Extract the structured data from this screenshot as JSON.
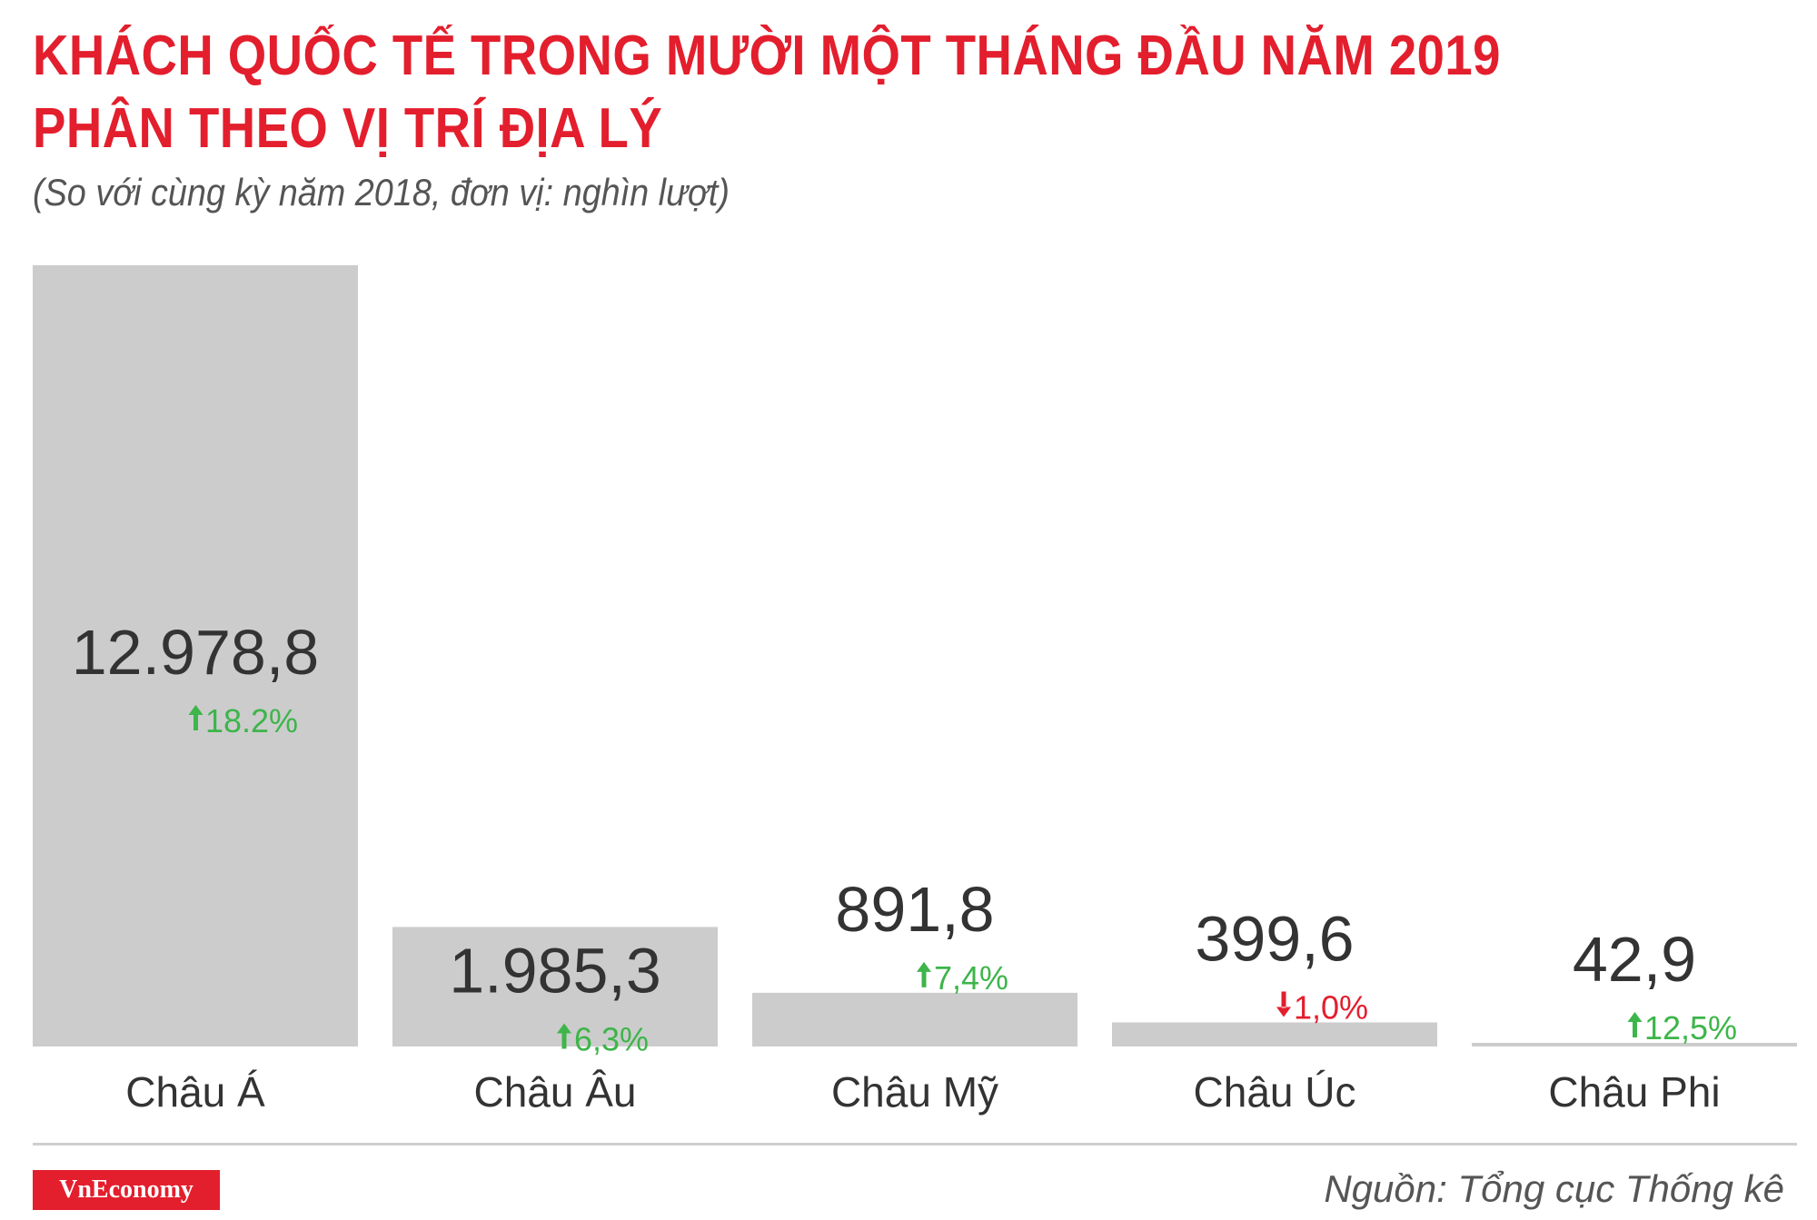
{
  "title_line1": "KHÁCH QUỐC TẾ TRONG MƯỜI MỘT THÁNG ĐẦU NĂM 2019",
  "title_line2": "PHÂN THEO VỊ TRÍ ĐỊA LÝ",
  "subtitle": "(So với cùng kỳ năm 2018, đơn vị: nghìn lượt)",
  "source": "Nguồn: Tổng cục Thống kê",
  "logo": "VnEconomy",
  "colors": {
    "title": "#e31e2d",
    "bar": "#cccccc",
    "up": "#3db54a",
    "down": "#e31e2d",
    "text": "#333333"
  },
  "chart_data": {
    "type": "bar",
    "categories": [
      "Châu Á",
      "Châu Âu",
      "Châu Mỹ",
      "Châu Úc",
      "Châu Phi"
    ],
    "values": [
      12978.8,
      1985.3,
      891.8,
      399.6,
      42.9
    ],
    "value_labels": [
      "12.978,8",
      "1.985,3",
      "891,8",
      "399,6",
      "42,9"
    ],
    "changes": [
      {
        "label": "18.2%",
        "direction": "up"
      },
      {
        "label": "6,3%",
        "direction": "up"
      },
      {
        "label": "7,4%",
        "direction": "up"
      },
      {
        "label": "1,0%",
        "direction": "down"
      },
      {
        "label": "12,5%",
        "direction": "up"
      }
    ],
    "ylim": [
      0,
      12978.8
    ],
    "grid": false,
    "legend": "none"
  }
}
